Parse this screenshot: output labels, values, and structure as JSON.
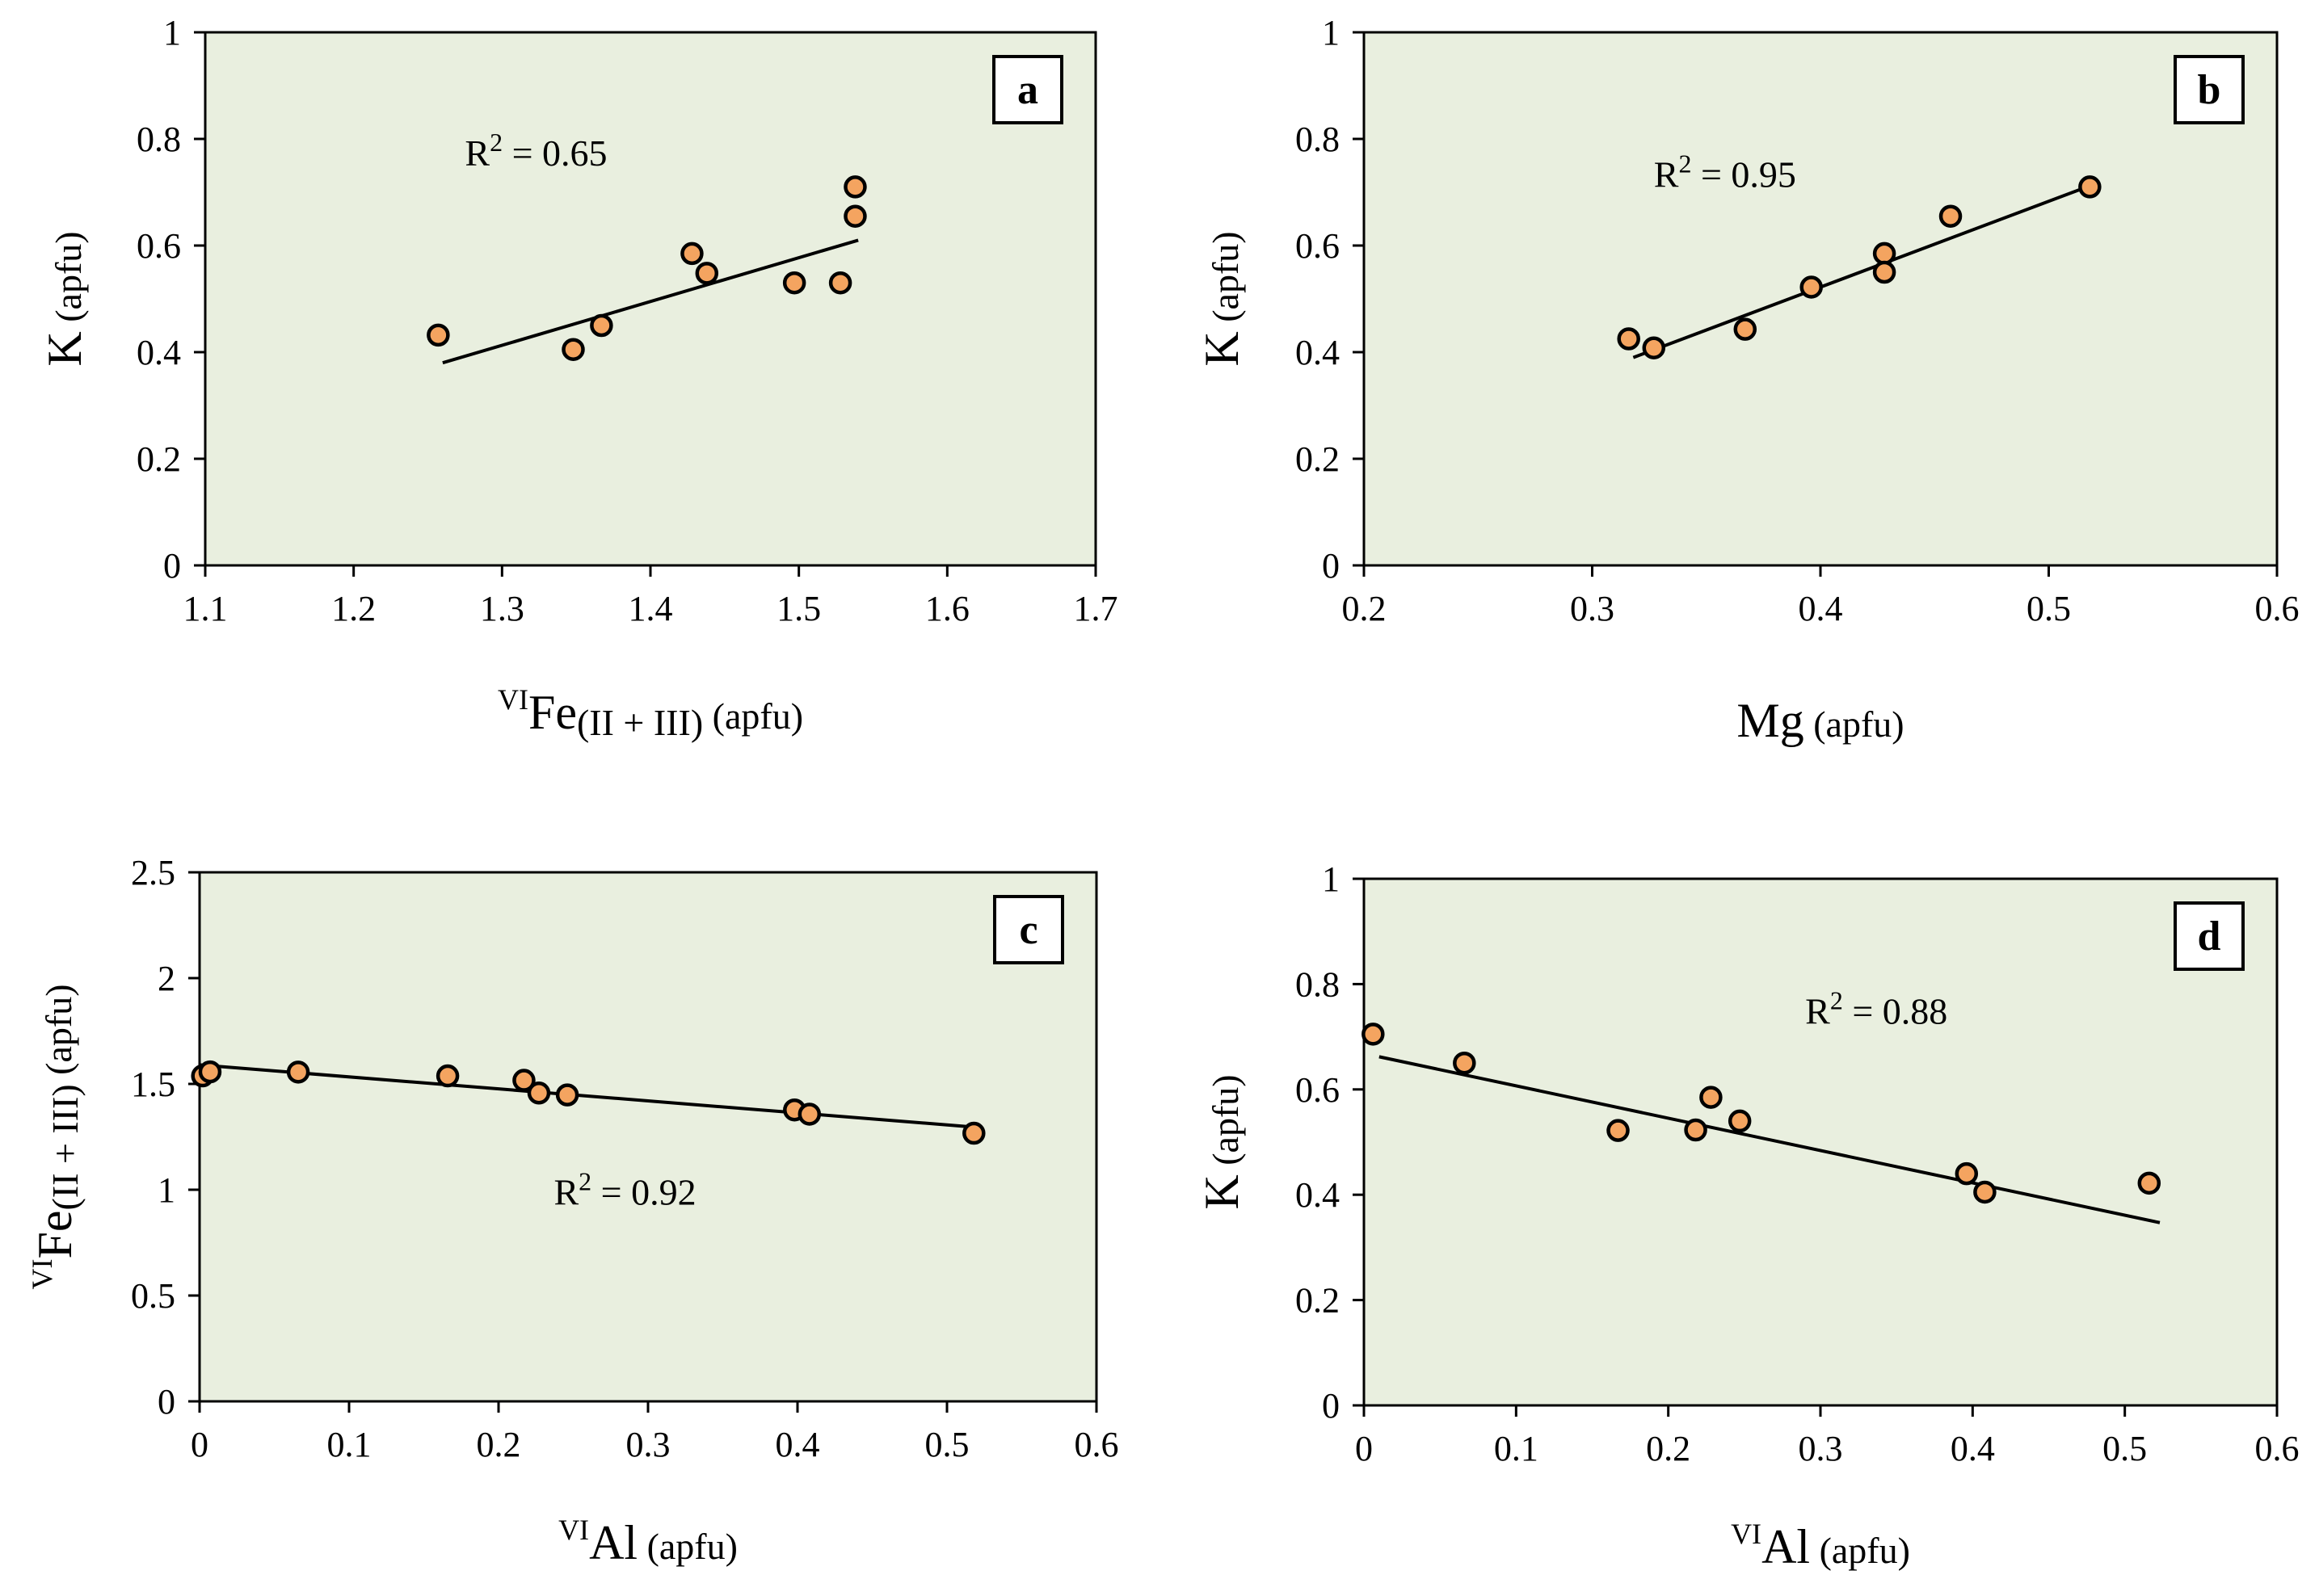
{
  "colors": {
    "plot_bg": "#e9efdf",
    "marker_fill": "#f4a460",
    "marker_stroke": "#000000",
    "line": "#000000"
  },
  "chart_data": [
    {
      "type": "scatter",
      "panel": "a",
      "xlabel": {
        "sup": "VI",
        "main": "Fe",
        "sub": "(II + III)",
        "tail": " (apfu)"
      },
      "ylabel": {
        "main": "K",
        "tail": " (apfu)"
      },
      "xlim": [
        1.1,
        1.7
      ],
      "ylim": [
        0,
        1
      ],
      "xticks": [
        "1.1",
        "1.2",
        "1.3",
        "1.4",
        "1.5",
        "1.6",
        "1.7"
      ],
      "yticks": [
        "0",
        "0.2",
        "0.4",
        "0.6",
        "0.8",
        "1"
      ],
      "points": [
        [
          1.257,
          0.432
        ],
        [
          1.348,
          0.405
        ],
        [
          1.367,
          0.45
        ],
        [
          1.428,
          0.585
        ],
        [
          1.438,
          0.548
        ],
        [
          1.497,
          0.53
        ],
        [
          1.528,
          0.53
        ],
        [
          1.538,
          0.71
        ],
        [
          1.538,
          0.655
        ]
      ],
      "trendline": [
        [
          1.26,
          0.38
        ],
        [
          1.54,
          0.61
        ]
      ],
      "r2": {
        "label": "R",
        "sup": "2",
        "value": " = 0.65"
      },
      "r2_pos": [
        1.275,
        0.75
      ]
    },
    {
      "type": "scatter",
      "panel": "b",
      "xlabel": {
        "sup": "",
        "main": "Mg",
        "sub": "",
        "tail": " (apfu)"
      },
      "ylabel": {
        "main": "K",
        "tail": " (apfu)"
      },
      "xlim": [
        0.2,
        0.6
      ],
      "ylim": [
        0,
        1
      ],
      "xticks": [
        "0.2",
        "0.3",
        "0.4",
        "0.5",
        "0.6"
      ],
      "yticks": [
        "0",
        "0.2",
        "0.4",
        "0.6",
        "0.8",
        "1"
      ],
      "points": [
        [
          0.316,
          0.425
        ],
        [
          0.327,
          0.408
        ],
        [
          0.367,
          0.443
        ],
        [
          0.396,
          0.522
        ],
        [
          0.428,
          0.585
        ],
        [
          0.428,
          0.55
        ],
        [
          0.457,
          0.655
        ],
        [
          0.518,
          0.71
        ]
      ],
      "trendline": [
        [
          0.318,
          0.39
        ],
        [
          0.518,
          0.712
        ]
      ],
      "r2": {
        "label": "R",
        "sup": "2",
        "value": " = 0.95"
      },
      "r2_pos": [
        0.327,
        0.71
      ]
    },
    {
      "type": "scatter",
      "panel": "c",
      "xlabel": {
        "sup": "VI",
        "main": "Al",
        "sub": "",
        "tail": " (apfu)"
      },
      "ylabel": {
        "sup": "VI",
        "main": "Fe",
        "sub": "(II + III)",
        "tail": " (apfu)"
      },
      "xlim": [
        0,
        0.6
      ],
      "ylim": [
        0,
        2.5
      ],
      "xticks": [
        "0",
        "0.1",
        "0.2",
        "0.3",
        "0.4",
        "0.5",
        "0.6"
      ],
      "yticks": [
        "0",
        "0.5",
        "1",
        "1.5",
        "2",
        "2.5"
      ],
      "points": [
        [
          0.002,
          1.538
        ],
        [
          0.007,
          1.557
        ],
        [
          0.066,
          1.556
        ],
        [
          0.166,
          1.538
        ],
        [
          0.217,
          1.517
        ],
        [
          0.227,
          1.457
        ],
        [
          0.246,
          1.448
        ],
        [
          0.398,
          1.377
        ],
        [
          0.408,
          1.357
        ],
        [
          0.518,
          1.267
        ]
      ],
      "trendline": [
        [
          0.0,
          1.59
        ],
        [
          0.52,
          1.295
        ]
      ],
      "r2": {
        "label": "R",
        "sup": "2",
        "value": " = 0.92"
      },
      "r2_pos": [
        0.237,
        0.93
      ]
    },
    {
      "type": "scatter",
      "panel": "d",
      "xlabel": {
        "sup": "VI",
        "main": "Al",
        "sub": "",
        "tail": " (apfu)"
      },
      "ylabel": {
        "main": "K",
        "tail": " (apfu)"
      },
      "xlim": [
        0,
        0.6
      ],
      "ylim": [
        0,
        1
      ],
      "xticks": [
        "0",
        "0.1",
        "0.2",
        "0.3",
        "0.4",
        "0.5",
        "0.6"
      ],
      "yticks": [
        "0",
        "0.2",
        "0.4",
        "0.6",
        "0.8",
        "1"
      ],
      "points": [
        [
          0.006,
          0.705
        ],
        [
          0.066,
          0.65
        ],
        [
          0.167,
          0.522
        ],
        [
          0.218,
          0.523
        ],
        [
          0.228,
          0.585
        ],
        [
          0.247,
          0.54
        ],
        [
          0.396,
          0.44
        ],
        [
          0.408,
          0.405
        ],
        [
          0.516,
          0.422
        ]
      ],
      "trendline": [
        [
          0.01,
          0.662
        ],
        [
          0.523,
          0.347
        ]
      ],
      "r2": {
        "label": "R",
        "sup": "2",
        "value": " = 0.88"
      },
      "r2_pos": [
        0.29,
        0.725
      ]
    }
  ]
}
